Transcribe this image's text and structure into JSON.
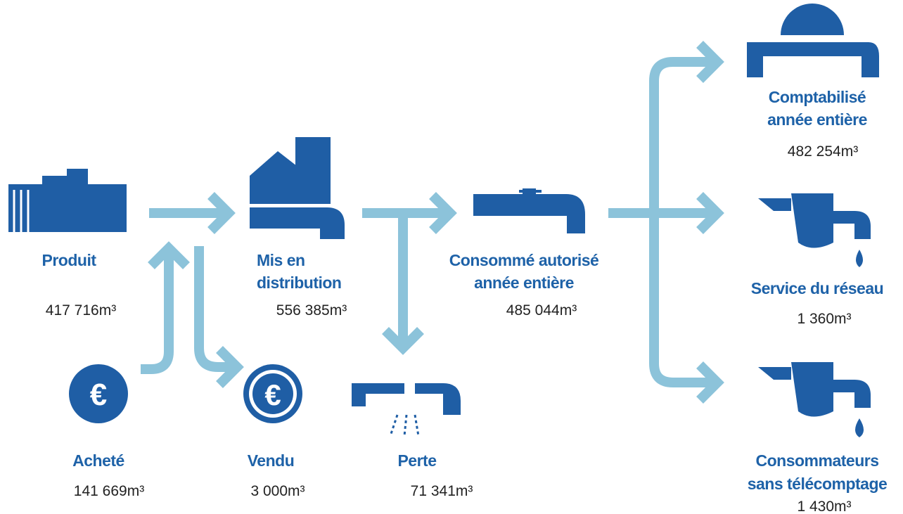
{
  "nodes": [
    {
      "label": [
        "Produit"
      ],
      "value": "417 716m³"
    },
    {
      "label": [
        "Acheté"
      ],
      "value": "141 669m³"
    },
    {
      "label": [
        "Vendu"
      ],
      "value": "3 000m³"
    },
    {
      "label": [
        "Mis en",
        "distribution"
      ],
      "value": "556 385m³"
    },
    {
      "label": [
        "Perte"
      ],
      "value": "71 341m³"
    },
    {
      "label": [
        "Consommé autorisé",
        "année entière"
      ],
      "value": "485 044m³"
    },
    {
      "label": [
        "Comptabilisé",
        "année entière"
      ],
      "value": "482 254m³"
    },
    {
      "label": [
        "Service du réseau"
      ],
      "value": "1 360m³"
    },
    {
      "label": [
        "Consommateurs",
        "sans télécomptage"
      ],
      "value": "1 430m³"
    }
  ]
}
